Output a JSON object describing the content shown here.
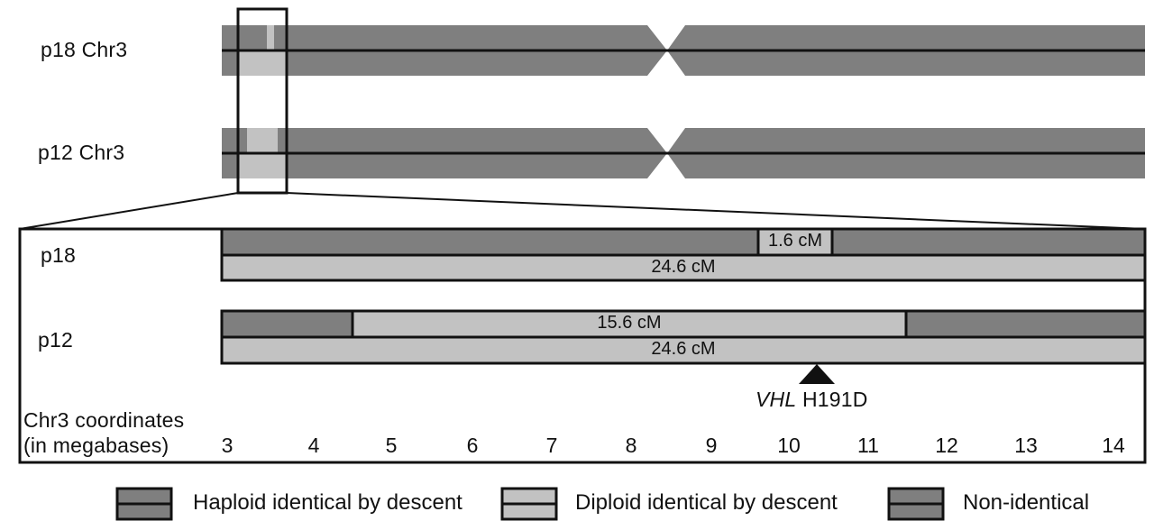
{
  "chromosomes": {
    "p18_label": "p18 Chr3",
    "p12_label": "p12 Chr3"
  },
  "zoom": {
    "p18_label": "p18",
    "p12_label": "p12",
    "p18_segment_label": "1.6 cM",
    "p18_diploid_label": "24.6 cM",
    "p12_segment_label": "15.6 cM",
    "p12_diploid_label": "24.6 cM"
  },
  "mutation": {
    "gene": "VHL",
    "variant": "H191D"
  },
  "axis": {
    "title_line1": "Chr3 coordinates",
    "title_line2": "(in megabases)",
    "ticks": [
      "3",
      "4",
      "5",
      "6",
      "7",
      "8",
      "9",
      "10",
      "11",
      "12",
      "13",
      "14"
    ]
  },
  "legend": {
    "haploid": "Haploid identical by descent",
    "diploid": "Diploid identical by descent",
    "nonidentical": "Non-identical"
  },
  "colors": {
    "haploid": "#7f7f7f",
    "diploid": "#c2c2c2",
    "nonidentical": "#7f7f7f",
    "outline": "#111111"
  }
}
